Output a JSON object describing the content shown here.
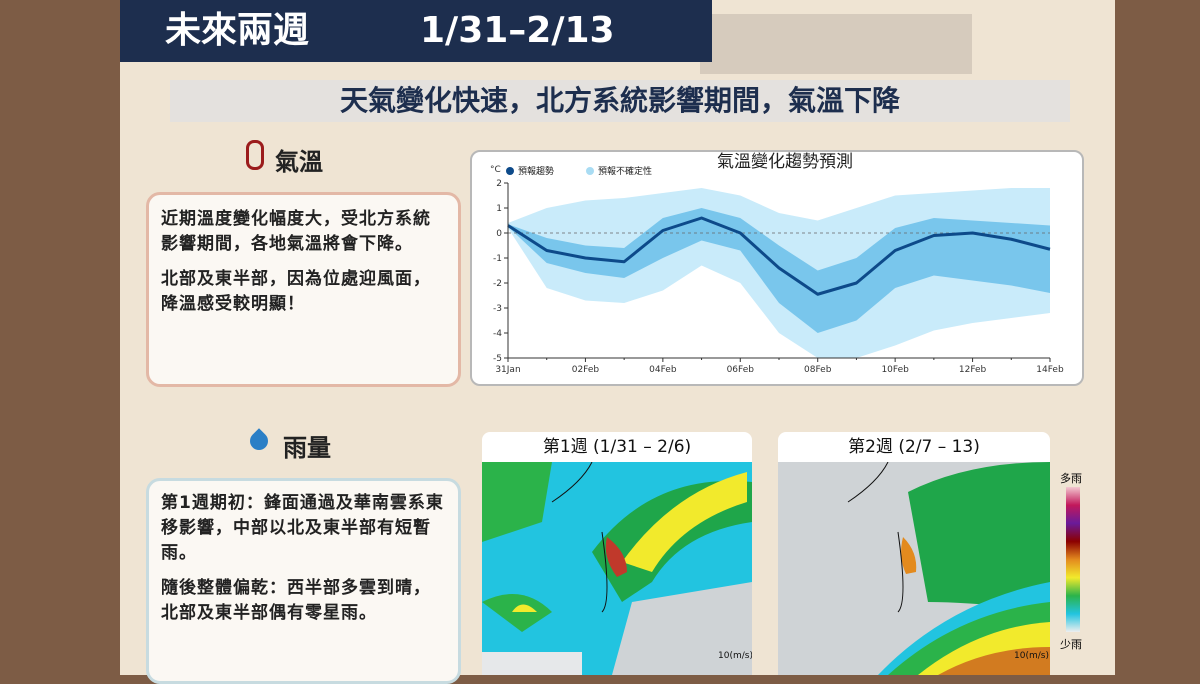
{
  "header": {
    "title": "未來兩週",
    "period": "1/31–2/13"
  },
  "subtitle": "天氣變化快速，北方系統影響期間，氣溫下降",
  "temperature": {
    "heading": "氣溫",
    "paragraphs": [
      "近期溫度變化幅度大，受北方系統影響期間，各地氣溫將會下降。",
      "北部及東半部，因為位處迎風面，降溫感受較明顯！"
    ]
  },
  "rain": {
    "heading": "雨量",
    "paragraphs": [
      "第1週期初：鋒面通過及華南雲系東移影響，中部以北及東半部有短暫雨。",
      "隨後整體偏乾：西半部多雲到晴，北部及東半部偶有零星雨。"
    ],
    "maps": [
      {
        "title": "第1週 (1/31 – 2/6)",
        "scale": "10(m/s)"
      },
      {
        "title": "第2週 (2/7 – 13)",
        "scale": "10(m/s)"
      }
    ],
    "legend": {
      "top": "多雨",
      "bottom": "少雨"
    }
  },
  "chart_data": {
    "type": "line",
    "title": "氣溫變化趨勢預測",
    "ylabel": "°C",
    "categories": [
      "31Jan",
      null,
      "02Feb",
      null,
      "04Feb",
      null,
      "06Feb",
      null,
      "08Feb",
      null,
      "10Feb",
      null,
      "12Feb",
      null,
      "14Feb"
    ],
    "series": [
      {
        "name": "預報趨勢",
        "color": "#0d4a8a",
        "values": [
          0.3,
          -0.7,
          -1.0,
          -1.15,
          0.1,
          0.6,
          0.0,
          -1.4,
          -2.45,
          -2.0,
          -0.7,
          -0.1,
          0.0,
          -0.25,
          -0.65
        ]
      },
      {
        "name": "預報不確定性",
        "color": "#a9dcf3",
        "bands": [
          {
            "color": "#c9ebfa",
            "upper": [
              0.4,
              1.0,
              1.3,
              1.4,
              1.6,
              1.8,
              1.5,
              0.8,
              0.5,
              1.0,
              1.5,
              1.6,
              1.7,
              1.8,
              1.8
            ],
            "lower": [
              0.2,
              -2.2,
              -2.7,
              -2.8,
              -2.3,
              -1.3,
              -2.0,
              -4.0,
              -5.0,
              -5.0,
              -4.5,
              -3.9,
              -3.6,
              -3.4,
              -3.2
            ]
          },
          {
            "color": "#79c6ec",
            "upper": [
              0.35,
              -0.2,
              -0.5,
              -0.6,
              0.6,
              1.0,
              0.6,
              -0.5,
              -1.5,
              -1.0,
              0.2,
              0.6,
              0.5,
              0.4,
              0.3
            ],
            "lower": [
              0.25,
              -1.2,
              -1.6,
              -1.8,
              -1.0,
              -0.3,
              -0.7,
              -2.8,
              -4.0,
              -3.5,
              -2.2,
              -1.7,
              -1.9,
              -2.1,
              -2.4
            ]
          }
        ]
      }
    ],
    "ylim": [
      -5,
      2
    ],
    "yticks": [
      2,
      1,
      0,
      -1,
      -2,
      -3,
      -4,
      -5
    ],
    "hline": 0
  }
}
